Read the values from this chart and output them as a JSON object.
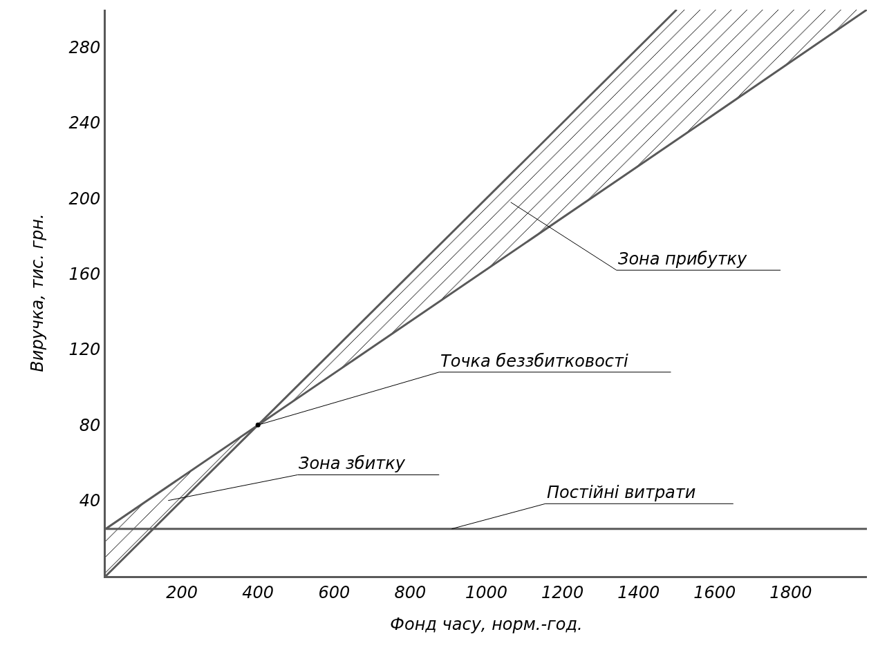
{
  "chart_data": {
    "type": "line",
    "xlabel": "Фонд часу, норм.-год.",
    "ylabel": "Виручка, тис. грн.",
    "xlim": [
      0,
      2000
    ],
    "ylim": [
      0,
      300
    ],
    "xticks": [
      200,
      400,
      600,
      800,
      1000,
      1200,
      1400,
      1600,
      1800
    ],
    "yticks": [
      40,
      80,
      120,
      160,
      200,
      240,
      280
    ],
    "grid": false,
    "marker": "none",
    "line_style": "solid",
    "series": [
      {
        "x": [
          0,
          1500
        ],
        "values": [
          0,
          300
        ],
        "color": "#595959"
      },
      {
        "x": [
          0,
          1500,
          2000
        ],
        "values": [
          25,
          231,
          300
        ],
        "color": "#595959",
        "lower": [
          25,
          231,
          300
        ],
        "upper": [
          0,
          300,
          300
        ]
      },
      {
        "type": "scatter",
        "x": [
          400
        ],
        "values": [
          80
        ],
        "color": "#000000"
      }
    ],
    "ref_lines": [
      {
        "axis": "y",
        "value": 25,
        "color": "#595959"
      }
    ],
    "annotations": [
      "Зона прибутку",
      {
        "text": "Точка беззбитковості",
        "x": 400,
        "y": 80
      },
      "Зона збитку",
      {
        "text": "Постійні витрати",
        "x": 909,
        "y": 25
      }
    ]
  }
}
